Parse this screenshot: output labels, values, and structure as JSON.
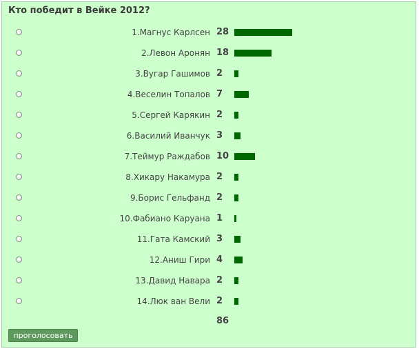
{
  "poll": {
    "title": "Кто победит в Вейке 2012?",
    "options": [
      {
        "label": "1.Магнус Карлсен",
        "votes": 28
      },
      {
        "label": "2.Левон Аронян",
        "votes": 18
      },
      {
        "label": "3.Вугар Гашимов",
        "votes": 2
      },
      {
        "label": "4.Веселин Топалов",
        "votes": 7
      },
      {
        "label": "5.Сергей Карякин",
        "votes": 2
      },
      {
        "label": "6.Василий Иванчук",
        "votes": 3
      },
      {
        "label": "7.Теймур Раждабов",
        "votes": 10
      },
      {
        "label": "8.Хикару Накамура",
        "votes": 2
      },
      {
        "label": "9.Борис Гельфанд",
        "votes": 2
      },
      {
        "label": "10.Фабиано Каруана",
        "votes": 1
      },
      {
        "label": "11.Гата Камский",
        "votes": 3
      },
      {
        "label": "12.Аниш Гири",
        "votes": 4
      },
      {
        "label": "13.Давид Навара",
        "votes": 2
      },
      {
        "label": "14.Люк ван Вели",
        "votes": 2
      }
    ],
    "total": 86,
    "vote_button_label": "проголосовать"
  },
  "colors": {
    "background": "#ccffcc",
    "bar": "#006600",
    "button": "#5e9a5e"
  }
}
